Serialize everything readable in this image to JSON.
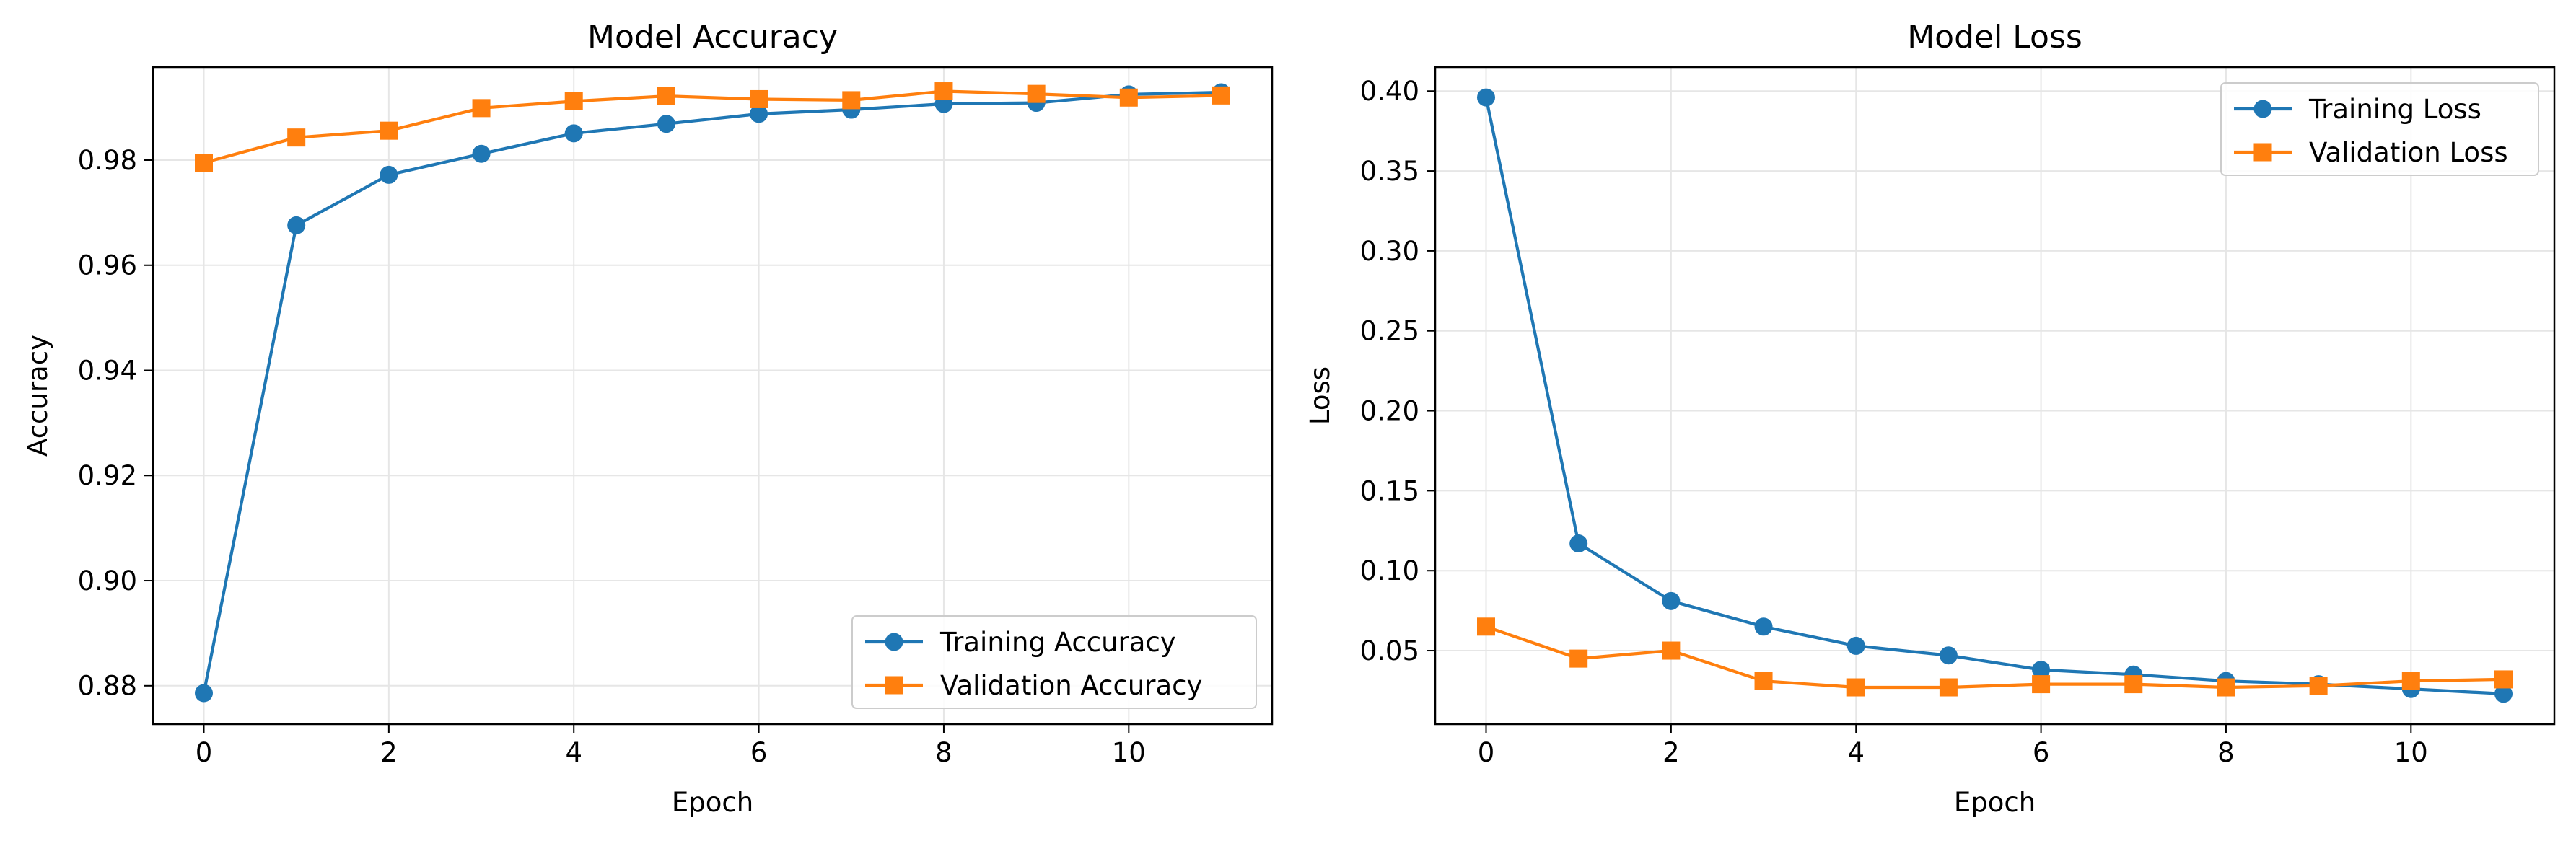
{
  "colors": {
    "training": "#1f77b4",
    "validation": "#ff7f0e",
    "grid": "#e6e6e6"
  },
  "chart_data": [
    {
      "type": "line",
      "title": "Model Accuracy",
      "xlabel": "Epoch",
      "ylabel": "Accuracy",
      "x": [
        0,
        1,
        2,
        3,
        4,
        5,
        6,
        7,
        8,
        9,
        10,
        11
      ],
      "xlim": [
        -0.55,
        11.55
      ],
      "ylim": [
        0.8727,
        0.9977
      ],
      "xticks": [
        0,
        2,
        4,
        6,
        8,
        10
      ],
      "yticks": [
        0.88,
        0.9,
        0.92,
        0.94,
        0.96,
        0.98
      ],
      "ytick_labels": [
        "0.88",
        "0.90",
        "0.92",
        "0.94",
        "0.96",
        "0.98"
      ],
      "grid": true,
      "legend_position": "lower-right",
      "series": [
        {
          "name": "Training Accuracy",
          "marker": "circle",
          "color": "#1f77b4",
          "values": [
            0.8786,
            0.9676,
            0.9772,
            0.9812,
            0.9851,
            0.9869,
            0.9888,
            0.9896,
            0.9907,
            0.9909,
            0.9925,
            0.9929
          ]
        },
        {
          "name": "Validation Accuracy",
          "marker": "square",
          "color": "#ff7f0e",
          "values": [
            0.9795,
            0.9843,
            0.9856,
            0.9899,
            0.9912,
            0.9922,
            0.9916,
            0.9914,
            0.9931,
            0.9926,
            0.9919,
            0.9923
          ]
        }
      ]
    },
    {
      "type": "line",
      "title": "Model Loss",
      "xlabel": "Epoch",
      "ylabel": "Loss",
      "x": [
        0,
        1,
        2,
        3,
        4,
        5,
        6,
        7,
        8,
        9,
        10,
        11
      ],
      "xlim": [
        -0.55,
        11.55
      ],
      "ylim": [
        0.004,
        0.415
      ],
      "xticks": [
        0,
        2,
        4,
        6,
        8,
        10
      ],
      "yticks": [
        0.05,
        0.1,
        0.15,
        0.2,
        0.25,
        0.3,
        0.35,
        0.4
      ],
      "ytick_labels": [
        "0.05",
        "0.10",
        "0.15",
        "0.20",
        "0.25",
        "0.30",
        "0.35",
        "0.40"
      ],
      "grid": true,
      "legend_position": "upper-right",
      "series": [
        {
          "name": "Training Loss",
          "marker": "circle",
          "color": "#1f77b4",
          "values": [
            0.396,
            0.117,
            0.081,
            0.065,
            0.053,
            0.047,
            0.038,
            0.035,
            0.031,
            0.029,
            0.026,
            0.023
          ]
        },
        {
          "name": "Validation Loss",
          "marker": "square",
          "color": "#ff7f0e",
          "values": [
            0.065,
            0.045,
            0.05,
            0.031,
            0.027,
            0.027,
            0.029,
            0.029,
            0.027,
            0.028,
            0.031,
            0.032
          ]
        }
      ]
    }
  ]
}
